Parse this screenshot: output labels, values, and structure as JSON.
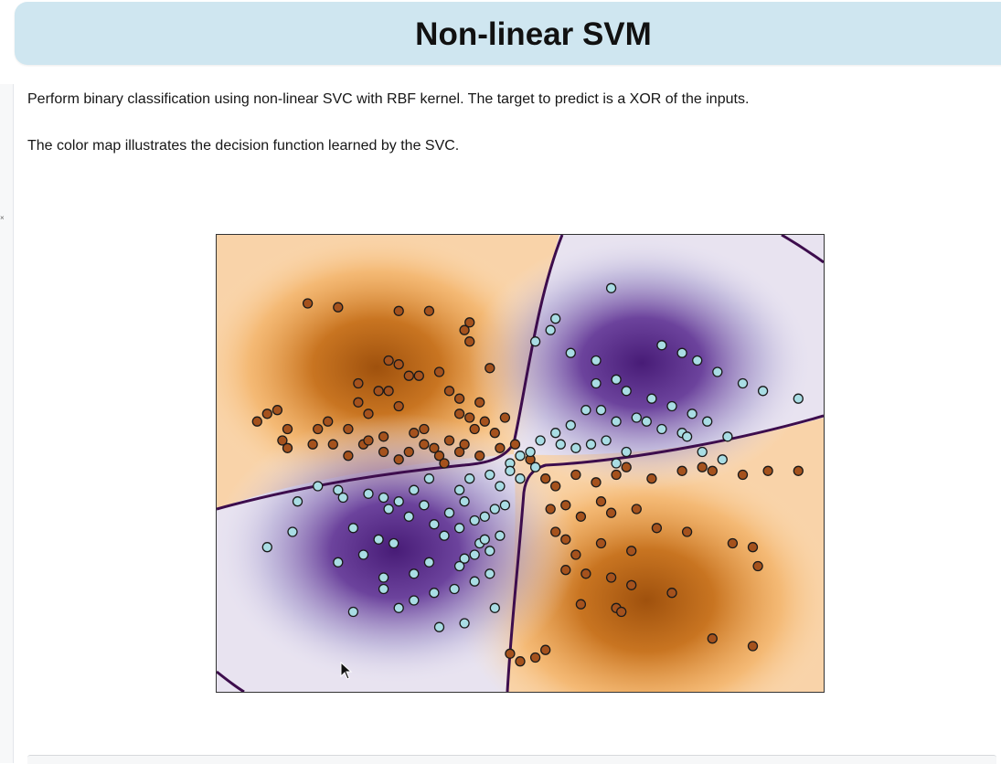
{
  "header": {
    "title": "Non-linear SVM"
  },
  "content": {
    "paragraph_1": "Perform binary classification using non-linear SVC with RBF kernel. The target to predict is a XOR of the inputs.",
    "paragraph_2": "The color map illustrates the decision function learned by the SVC."
  },
  "gutter": {
    "mark": "×"
  },
  "colors": {
    "banner": "#cfe6f0",
    "orange": "#b35806",
    "orange_light": "#fdb863",
    "purple": "#542788",
    "purple_light": "#b2abd2",
    "class_orange_point": "#a5521d",
    "class_blue_point": "#a9dde4",
    "boundary": "#3d0d4d"
  },
  "chart_data": {
    "type": "scatter",
    "title": "",
    "xlabel": "",
    "ylabel": "",
    "xlim": [
      -3,
      3
    ],
    "ylim": [
      -3,
      3
    ],
    "description_free": true,
    "series": [
      {
        "name": "",
        "color": "#a5521d",
        "x": [
          -2.1,
          -1.8,
          -1.2,
          -0.9,
          -0.5,
          -0.55,
          -0.5,
          -0.3,
          -1.3,
          -1.2,
          -1.1,
          -1.3,
          -1.0,
          -0.8,
          -0.7,
          -0.6,
          -0.4,
          -0.5,
          -1.6,
          -2.4,
          -2.6,
          -2.5,
          -2.3,
          -2.0,
          -1.9,
          -1.7,
          -1.5,
          -1.6,
          -1.4,
          -1.2,
          -1.05,
          -0.95,
          -0.7,
          -0.6,
          -0.45,
          -0.35,
          -0.25,
          -0.15,
          -0.05,
          -1.55,
          -1.35,
          -1.1,
          -0.95,
          -0.8,
          -2.35,
          -2.3,
          -2.05,
          -1.85,
          -1.7,
          -1.5,
          -1.35,
          -1.2,
          -0.85,
          -0.75,
          -0.6,
          -0.55,
          -0.4,
          -0.2,
          0.1,
          0.25,
          0.35,
          0.55,
          0.75,
          0.95,
          1.05,
          1.3,
          1.6,
          1.8,
          1.9,
          2.2,
          2.45,
          2.75,
          0.3,
          0.45,
          0.6,
          0.8,
          0.9,
          1.15,
          1.35,
          1.65,
          2.1,
          2.3,
          2.35,
          0.35,
          0.45,
          0.55,
          0.8,
          1.1,
          0.45,
          0.65,
          0.9,
          1.1,
          0.6,
          0.95,
          1.0,
          1.5,
          -0.1,
          0.0,
          0.15,
          0.25,
          1.9,
          2.3
        ],
        "y": [
          2.1,
          2.05,
          2.0,
          2.0,
          1.85,
          1.75,
          1.6,
          1.25,
          1.35,
          1.3,
          1.15,
          0.95,
          1.15,
          1.2,
          0.95,
          0.85,
          0.8,
          0.6,
          1.05,
          0.7,
          0.55,
          0.65,
          0.45,
          0.45,
          0.55,
          0.45,
          0.65,
          0.8,
          0.95,
          0.75,
          0.4,
          0.45,
          0.3,
          0.65,
          0.45,
          0.55,
          0.4,
          0.6,
          0.25,
          0.25,
          0.35,
          0.15,
          0.25,
          0.1,
          0.3,
          0.2,
          0.25,
          0.25,
          0.1,
          0.3,
          0.15,
          0.05,
          0.2,
          0.0,
          0.15,
          0.25,
          0.1,
          0.2,
          0.05,
          -0.2,
          -0.3,
          -0.15,
          -0.25,
          -0.15,
          -0.05,
          -0.2,
          -0.1,
          -0.05,
          -0.1,
          -0.15,
          -0.1,
          -0.1,
          -0.6,
          -0.55,
          -0.7,
          -0.5,
          -0.65,
          -0.6,
          -0.85,
          -0.9,
          -1.05,
          -1.1,
          -1.35,
          -0.9,
          -1.0,
          -1.2,
          -1.05,
          -1.15,
          -1.4,
          -1.45,
          -1.5,
          -1.6,
          -1.85,
          -1.9,
          -1.95,
          -1.7,
          -2.5,
          -2.6,
          -2.55,
          -2.45,
          -2.3,
          -2.4
        ]
      },
      {
        "name": "",
        "color": "#a9dde4",
        "x": [
          0.9,
          0.35,
          0.3,
          0.15,
          0.5,
          0.75,
          1.4,
          1.6,
          1.75,
          1.95,
          2.2,
          2.4,
          2.75,
          0.75,
          0.95,
          1.05,
          1.3,
          1.5,
          1.7,
          1.85,
          2.05,
          1.6,
          0.8,
          0.95,
          1.15,
          1.25,
          1.4,
          0.65,
          0.5,
          0.35,
          0.4,
          0.55,
          0.7,
          0.85,
          1.05,
          0.2,
          0.1,
          0.0,
          -0.1,
          0.95,
          1.65,
          1.8,
          2.0,
          -2.0,
          -1.8,
          -2.2,
          -1.75,
          -1.5,
          -1.35,
          -1.2,
          -1.05,
          -0.9,
          -0.6,
          -0.5,
          -0.3,
          -0.2,
          -0.1,
          0.0,
          0.15,
          -1.3,
          -1.1,
          -0.95,
          -0.85,
          -0.7,
          -0.55,
          -0.35,
          -0.25,
          -0.15,
          -2.25,
          -1.65,
          -1.55,
          -1.4,
          -1.25,
          -0.75,
          -0.6,
          -0.45,
          -0.3,
          -1.8,
          -1.35,
          -1.05,
          -0.9,
          -0.55,
          -0.4,
          -0.2,
          -1.35,
          -1.05,
          -0.65,
          -0.45,
          -0.3,
          -2.5,
          -1.65,
          -1.2,
          -0.85,
          -0.6,
          -0.45,
          -0.35,
          -0.8,
          -0.55,
          -0.25
        ],
        "y": [
          2.3,
          1.9,
          1.75,
          1.6,
          1.45,
          1.35,
          1.55,
          1.45,
          1.35,
          1.2,
          1.05,
          0.95,
          0.85,
          1.05,
          1.1,
          0.95,
          0.85,
          0.75,
          0.65,
          0.55,
          0.35,
          0.4,
          0.7,
          0.55,
          0.6,
          0.55,
          0.45,
          0.7,
          0.5,
          0.4,
          0.25,
          0.2,
          0.25,
          0.3,
          0.15,
          0.3,
          0.15,
          0.1,
          0.0,
          0.0,
          0.35,
          0.15,
          0.05,
          -0.3,
          -0.35,
          -0.5,
          -0.45,
          -0.4,
          -0.45,
          -0.5,
          -0.35,
          -0.2,
          -0.35,
          -0.2,
          -0.15,
          -0.3,
          -0.1,
          -0.2,
          -0.05,
          -0.6,
          -0.7,
          -0.55,
          -0.8,
          -0.65,
          -0.5,
          -0.7,
          -0.6,
          -0.55,
          -0.9,
          -0.85,
          -1.2,
          -1.0,
          -1.05,
          -0.95,
          -0.85,
          -0.75,
          -1.15,
          -1.3,
          -1.5,
          -1.45,
          -1.3,
          -1.25,
          -1.05,
          -0.95,
          -1.65,
          -1.8,
          -1.65,
          -1.55,
          -1.45,
          -1.1,
          -1.95,
          -1.9,
          -1.7,
          -1.35,
          -1.2,
          -1.0,
          -2.15,
          -2.1,
          -1.9
        ]
      }
    ]
  }
}
